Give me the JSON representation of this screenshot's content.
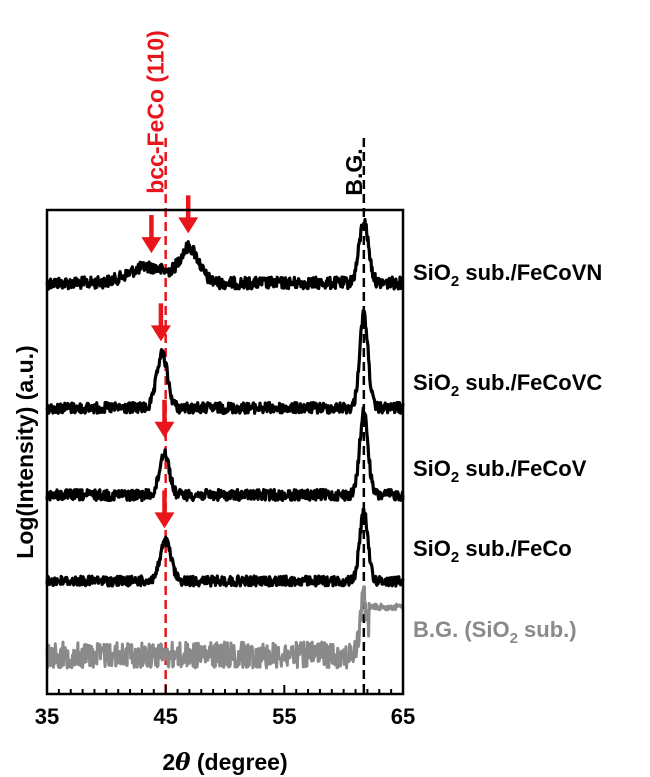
{
  "chart_data": {
    "type": "line",
    "xlabel_prefix": "2",
    "xlabel_symbol": "θ",
    "xlabel_suffix": " (degree)",
    "ylabel": "Log(Intensity) (a.u.)",
    "xlim": [
      35,
      65
    ],
    "xticks": [
      "35",
      "45",
      "55",
      "65"
    ],
    "grid": false,
    "legend": "none (series labelled at right of each trace)",
    "annotations": {
      "red_line_label": "bcc-FeCo (110)",
      "red_line_x": 45,
      "black_line_label": "B.G.",
      "black_line_x": 61.7,
      "red_color": "#e8151b",
      "black_color": "#000000"
    },
    "series": [
      {
        "label_pre": "SiO",
        "label_sub": "2",
        "label_post": " sub./FeCoVN",
        "color": "#000000",
        "peaks": [
          {
            "x": 43.5,
            "h": 0.45,
            "w": 1.6
          },
          {
            "x": 47.0,
            "h": 0.95,
            "w": 0.8
          },
          {
            "x": 61.7,
            "h": 1.7,
            "w": 0.4
          }
        ],
        "arrows_x": [
          43.8,
          46.9
        ]
      },
      {
        "label_pre": "SiO",
        "label_sub": "2",
        "label_post": " sub./FeCoVC",
        "color": "#000000",
        "peaks": [
          {
            "x": 44.7,
            "h": 1.5,
            "w": 0.45
          },
          {
            "x": 61.7,
            "h": 2.6,
            "w": 0.35
          }
        ],
        "arrows_x": [
          44.6
        ]
      },
      {
        "label_pre": "SiO",
        "label_sub": "2",
        "label_post": " sub./FeCoV",
        "color": "#000000",
        "peaks": [
          {
            "x": 44.9,
            "h": 1.2,
            "w": 0.4
          },
          {
            "x": 61.7,
            "h": 2.3,
            "w": 0.35
          }
        ],
        "arrows_x": [
          44.9
        ]
      },
      {
        "label_pre": "SiO",
        "label_sub": "2",
        "label_post": " sub./FeCo",
        "color": "#000000",
        "peaks": [
          {
            "x": 45.0,
            "h": 1.1,
            "w": 0.45
          },
          {
            "x": 61.7,
            "h": 1.9,
            "w": 0.35
          }
        ],
        "arrows_x": [
          44.9
        ]
      },
      {
        "label_pre": "B.G. (SiO",
        "label_sub": "2",
        "label_post": " sub.)",
        "color": "#8a8a8a",
        "peaks": [
          {
            "x": 61.7,
            "h": 1.6,
            "w": 0.3
          }
        ],
        "arrows_x": []
      }
    ]
  }
}
